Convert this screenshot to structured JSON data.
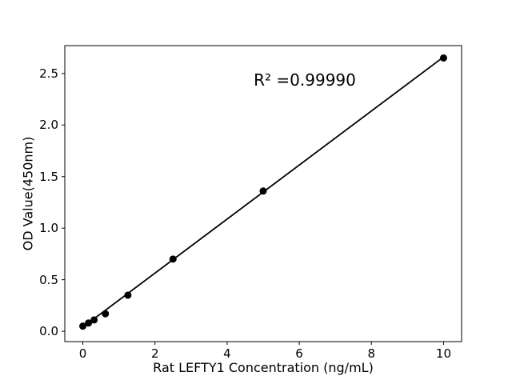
{
  "figure": {
    "background": "#ffffff",
    "foreground": "#000000"
  },
  "chart_data": {
    "type": "scatter",
    "title": "",
    "xlabel": "Rat LEFTY1 Concentration (ng/mL)",
    "ylabel": "OD Value(450nm)",
    "annotation": "R² =0.99990",
    "x": [
      0,
      0.156,
      0.3125,
      0.625,
      1.25,
      2.5,
      5,
      10
    ],
    "y": [
      0.05,
      0.08,
      0.11,
      0.17,
      0.35,
      0.7,
      1.36,
      2.65
    ],
    "fit_line": {
      "x": [
        0,
        10
      ],
      "y": [
        0.04,
        2.66
      ]
    },
    "xlim": [
      -0.5,
      10.5
    ],
    "ylim": [
      -0.1,
      2.77
    ],
    "x_ticks": [
      0,
      2,
      4,
      6,
      8,
      10
    ],
    "x_tick_labels": [
      "0",
      "2",
      "4",
      "6",
      "8",
      "10"
    ],
    "y_ticks": [
      0,
      0.5,
      1,
      1.5,
      2,
      2.5
    ],
    "y_tick_labels": [
      "0.0",
      "0.5",
      "1.0",
      "1.5",
      "2.0",
      "2.5"
    ],
    "grid": false,
    "legend_position": "none",
    "marker_color": "#000000",
    "line_color": "#000000"
  }
}
